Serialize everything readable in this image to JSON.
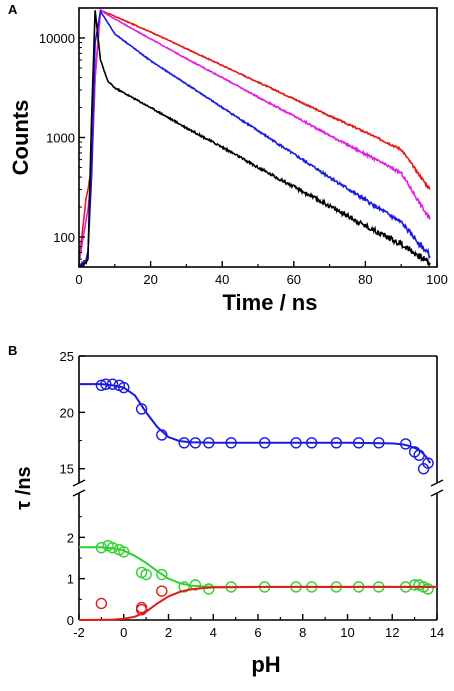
{
  "chart_data": [
    {
      "panel_label": "A",
      "type": "line",
      "xlabel": "Time / ns",
      "ylabel": "Counts",
      "xlim": [
        0,
        100
      ],
      "ylim": [
        50,
        20000
      ],
      "yscale": "log",
      "xticks": [
        "0",
        "20",
        "40",
        "60",
        "80",
        "100"
      ],
      "yticks": [
        "100",
        "1000",
        "10000"
      ],
      "series": [
        {
          "color": "#e11a1a",
          "x": [
            0,
            2,
            2.5,
            3.5,
            4.5,
            6,
            10,
            20,
            30,
            40,
            50,
            60,
            70,
            80,
            90,
            98
          ],
          "y": [
            55,
            250,
            300,
            500,
            4000,
            19000,
            16500,
            11500,
            7800,
            5300,
            3600,
            2450,
            1650,
            1130,
            760,
            300
          ]
        },
        {
          "color": "#e020e0",
          "x": [
            0,
            2,
            2.5,
            3.5,
            4.5,
            6,
            10,
            20,
            30,
            40,
            50,
            60,
            70,
            80,
            90,
            98
          ],
          "y": [
            55,
            150,
            190,
            400,
            4000,
            19000,
            15500,
            9800,
            6200,
            4000,
            2550,
            1650,
            1050,
            680,
            440,
            150
          ]
        },
        {
          "color": "#1a1ae0",
          "x": [
            0,
            2,
            2.5,
            3.5,
            4.5,
            6,
            10,
            20,
            30,
            40,
            50,
            60,
            70,
            80,
            90,
            98
          ],
          "y": [
            50,
            60,
            70,
            400,
            9000,
            18500,
            11000,
            5900,
            3450,
            2000,
            1170,
            680,
            400,
            235,
            140,
            65
          ]
        },
        {
          "color": "#000000",
          "x": [
            0,
            2,
            2.5,
            3.5,
            4.5,
            6,
            8,
            10,
            20,
            30,
            40,
            50,
            60,
            70,
            80,
            90,
            98
          ],
          "y": [
            50,
            55,
            60,
            1500,
            19000,
            6000,
            3700,
            3150,
            2000,
            1250,
            800,
            500,
            320,
            205,
            130,
            85,
            55
          ]
        }
      ]
    },
    {
      "panel_label": "B",
      "type": "scatter",
      "xlabel": "pH",
      "ylabel": "τ /ns",
      "xlim": [
        -2,
        14
      ],
      "y_axis_break": {
        "lower": [
          0,
          3
        ],
        "upper": [
          14,
          25
        ]
      },
      "xticks": [
        "-2",
        "0",
        "2",
        "4",
        "6",
        "8",
        "10",
        "12",
        "14"
      ],
      "yticks_lower": [
        "0",
        "1",
        "2"
      ],
      "yticks_upper": [
        "15",
        "20",
        "25"
      ],
      "series": [
        {
          "color": "#1a1ae0",
          "x": [
            -1.0,
            -0.8,
            -0.5,
            -0.2,
            0.0,
            0.8,
            1.7,
            2.7,
            3.2,
            3.8,
            4.8,
            6.3,
            7.7,
            8.4,
            9.5,
            10.5,
            11.4,
            12.6,
            13.0,
            13.2,
            13.4,
            13.6
          ],
          "y": [
            22.4,
            22.5,
            22.5,
            22.4,
            22.2,
            20.3,
            18.0,
            17.3,
            17.3,
            17.3,
            17.3,
            17.3,
            17.3,
            17.3,
            17.3,
            17.3,
            17.3,
            17.2,
            16.5,
            16.2,
            15.0,
            15.5
          ],
          "fit_x": [
            -2,
            -1,
            -0.5,
            0,
            0.5,
            1,
            1.5,
            2,
            2.5,
            3,
            4,
            6,
            8,
            10,
            12,
            12.5,
            12.8,
            13.1,
            13.3,
            13.5,
            13.7
          ],
          "fit_y": [
            22.5,
            22.5,
            22.4,
            22.2,
            21.5,
            20.0,
            18.7,
            17.8,
            17.45,
            17.35,
            17.3,
            17.3,
            17.3,
            17.3,
            17.25,
            17.15,
            17.0,
            16.75,
            16.5,
            16.1,
            15.5
          ]
        },
        {
          "color": "#2fd02f",
          "x": [
            -1.0,
            -0.7,
            -0.5,
            -0.2,
            0.0,
            0.8,
            1.0,
            1.7,
            2.7,
            3.2,
            3.8,
            4.8,
            6.3,
            7.7,
            8.4,
            9.5,
            10.5,
            11.4,
            12.6,
            13.0,
            13.2,
            13.4,
            13.6
          ],
          "y": [
            1.75,
            1.8,
            1.75,
            1.7,
            1.65,
            1.15,
            1.1,
            1.1,
            0.8,
            0.85,
            0.75,
            0.8,
            0.8,
            0.8,
            0.8,
            0.8,
            0.8,
            0.8,
            0.8,
            0.85,
            0.85,
            0.8,
            0.75
          ],
          "fit_x": [
            -2,
            -1,
            -0.5,
            0,
            0.5,
            1,
            1.5,
            2,
            2.5,
            3,
            4,
            6,
            8,
            10,
            12,
            14
          ],
          "fit_y": [
            1.76,
            1.76,
            1.74,
            1.68,
            1.55,
            1.38,
            1.18,
            1.0,
            0.89,
            0.83,
            0.8,
            0.8,
            0.8,
            0.8,
            0.8,
            0.8
          ]
        },
        {
          "color": "#e11a1a",
          "x": [
            -1.0,
            0.8,
            0.8,
            1.7
          ],
          "y": [
            0.4,
            0.3,
            0.25,
            0.7
          ],
          "fit_x": [
            -2,
            -0.5,
            0,
            0.5,
            1,
            1.5,
            2,
            2.5,
            3,
            3.5,
            4,
            6,
            8,
            10,
            12,
            14
          ],
          "fit_y": [
            0.0,
            0.01,
            0.03,
            0.08,
            0.2,
            0.4,
            0.57,
            0.68,
            0.74,
            0.77,
            0.79,
            0.8,
            0.8,
            0.8,
            0.8,
            0.8
          ]
        }
      ]
    }
  ]
}
